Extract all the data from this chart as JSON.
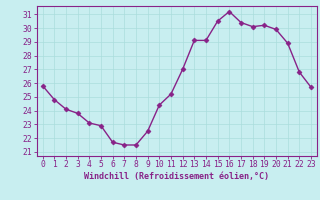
{
  "x": [
    0,
    1,
    2,
    3,
    4,
    5,
    6,
    7,
    8,
    9,
    10,
    11,
    12,
    13,
    14,
    15,
    16,
    17,
    18,
    19,
    20,
    21,
    22,
    23
  ],
  "y": [
    25.8,
    24.8,
    24.1,
    23.8,
    23.1,
    22.9,
    21.7,
    21.5,
    21.5,
    22.5,
    24.4,
    25.2,
    27.0,
    29.1,
    29.1,
    30.5,
    31.2,
    30.4,
    30.1,
    30.2,
    29.9,
    28.9,
    26.8,
    25.7
  ],
  "line_color": "#882288",
  "marker": "D",
  "markersize": 2.5,
  "linewidth": 1.0,
  "background_color": "#c8eef0",
  "grid_color": "#aadddd",
  "axis_color": "#882288",
  "tick_color": "#882288",
  "xlabel": "Windchill (Refroidissement éolien,°C)",
  "xlabel_fontsize": 6.0,
  "xlabel_color": "#882288",
  "ylabel_ticks": [
    21,
    22,
    23,
    24,
    25,
    26,
    27,
    28,
    29,
    30,
    31
  ],
  "xtick_labels": [
    "0",
    "1",
    "2",
    "3",
    "4",
    "5",
    "6",
    "7",
    "8",
    "9",
    "10",
    "11",
    "12",
    "13",
    "14",
    "15",
    "16",
    "17",
    "18",
    "19",
    "20",
    "21",
    "22",
    "23"
  ],
  "ylim": [
    20.7,
    31.6
  ],
  "xlim": [
    -0.5,
    23.5
  ],
  "tick_fontsize": 5.8
}
